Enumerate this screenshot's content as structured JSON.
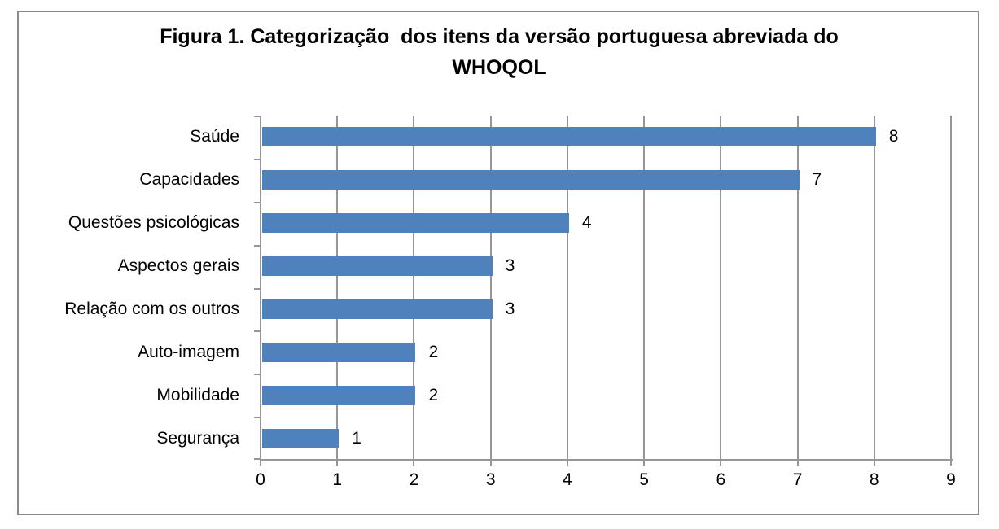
{
  "chart_data": {
    "type": "bar",
    "orientation": "horizontal",
    "title": "Figura 1. Categorização  dos itens da versão portuguesa abreviada do WHOQOL",
    "categories": [
      "Saúde",
      "Capacidades",
      "Questões psicológicas",
      "Aspectos gerais",
      "Relação com os outros",
      "Auto-imagem",
      "Mobilidade",
      "Segurança"
    ],
    "values": [
      8,
      7,
      4,
      3,
      3,
      2,
      2,
      1
    ],
    "data_labels": [
      "8",
      "7",
      "4",
      "3",
      "3",
      "2",
      "2",
      "1"
    ],
    "xlabel": "",
    "ylabel": "",
    "xlim": [
      0,
      9
    ],
    "xticks": [
      "0",
      "1",
      "2",
      "3",
      "4",
      "5",
      "6",
      "7",
      "8",
      "9"
    ],
    "grid": true,
    "legend": false,
    "bar_color": "#4F81BD",
    "axis_color": "#969696",
    "frame_border_color": "#898989",
    "text_color": "#000000"
  }
}
